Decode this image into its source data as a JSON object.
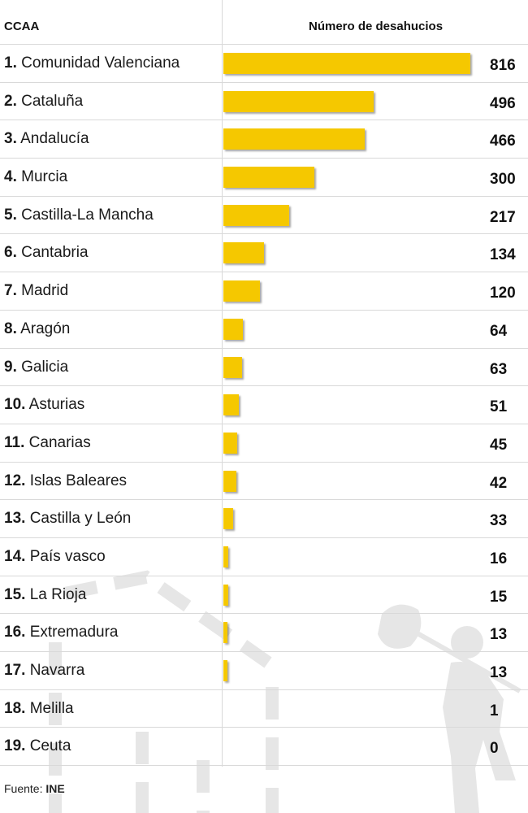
{
  "header": {
    "col_region": "CCAA",
    "col_value": "Número de desahucios"
  },
  "source": {
    "label": "Fuente:",
    "value": "INE"
  },
  "colors": {
    "bar": "#f5c800",
    "grid": "#d9d9d9",
    "watermark": "#e6e6e6"
  },
  "chart_data": {
    "type": "bar",
    "orientation": "horizontal",
    "xlabel": "Número de desahucios",
    "ylabel": "CCAA",
    "xlim": [
      0,
      816
    ],
    "categories": [
      "Comunidad Valenciana",
      "Cataluña",
      "Andalucía",
      "Murcia",
      "Castilla-La Mancha",
      "Cantabria",
      "Madrid",
      "Aragón",
      "Galicia",
      "Asturias",
      "Canarias",
      "Islas Baleares",
      "Castilla y León",
      "País vasco",
      "La Rioja",
      "Extremadura",
      "Navarra",
      "Melilla",
      "Ceuta"
    ],
    "ranks": [
      "1.",
      "2.",
      "3.",
      "4.",
      "5.",
      "6.",
      "7.",
      "8.",
      "9.",
      "10.",
      "11.",
      "12.",
      "13.",
      "14.",
      "15.",
      "16.",
      "17.",
      "18.",
      "19."
    ],
    "values": [
      816,
      496,
      466,
      300,
      217,
      134,
      120,
      64,
      63,
      51,
      45,
      42,
      33,
      16,
      15,
      13,
      13,
      1,
      0
    ]
  }
}
